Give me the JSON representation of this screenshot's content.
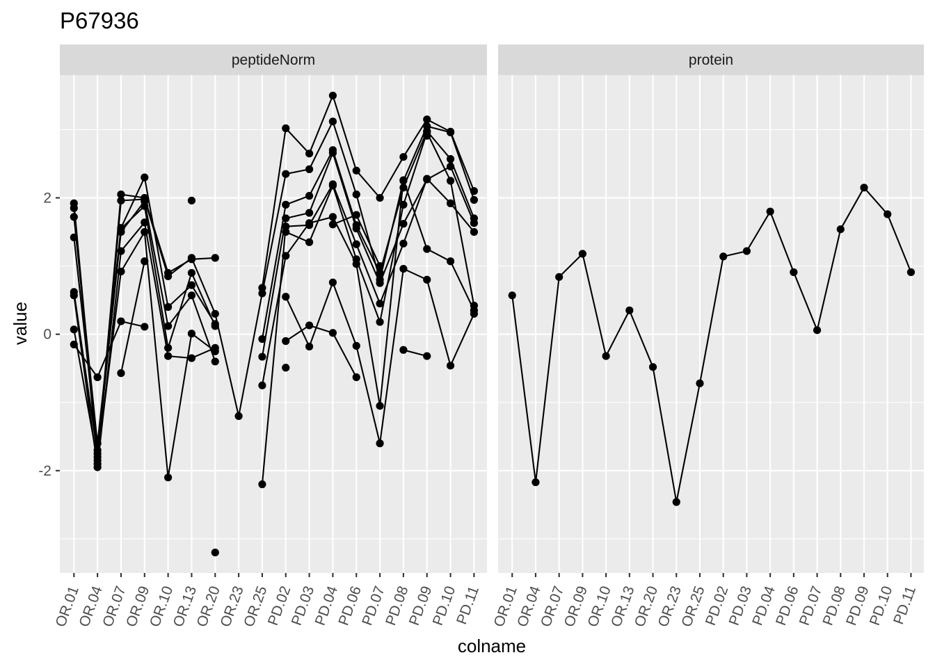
{
  "chart_data": {
    "type": "line",
    "title": "P67936",
    "xlabel": "colname",
    "ylabel": "value",
    "ylim": [
      -3.5,
      3.8
    ],
    "y_ticks": [
      -2,
      0,
      2
    ],
    "grid": true,
    "categories": [
      "OR.01",
      "OR.04",
      "OR.07",
      "OR.09",
      "OR.10",
      "OR.13",
      "OR.20",
      "OR.23",
      "OR.25",
      "PD.02",
      "PD.03",
      "PD.04",
      "PD.06",
      "PD.07",
      "PD.08",
      "PD.09",
      "PD.10",
      "PD.11"
    ],
    "panels": [
      {
        "label": "peptideNorm",
        "series": [
          {
            "values": [
              1.92,
              -1.8,
              2.05,
              2.0,
              0.9,
              1.1,
              1.12,
              null,
              0.68,
              3.02,
              2.65,
              3.5,
              2.4,
              2.0,
              2.6,
              3.15,
              2.97,
              2.1
            ]
          },
          {
            "values": [
              1.85,
              -1.9,
              1.96,
              1.98,
              0.85,
              1.12,
              0.3,
              -1.2,
              0.6,
              2.35,
              2.42,
              3.12,
              2.05,
              0.8,
              2.25,
              3.05,
              2.96,
              1.97
            ]
          },
          {
            "values": [
              1.72,
              -1.6,
              1.56,
              2.3,
              0.4,
              0.72,
              0.15,
              null,
              -0.07,
              1.9,
              2.03,
              2.7,
              1.6,
              0.9,
              2.15,
              2.98,
              2.57,
              1.7
            ]
          },
          {
            "values": [
              1.42,
              -1.7,
              1.5,
              1.95,
              0.12,
              0.57,
              -0.4,
              null,
              -0.33,
              1.7,
              1.78,
              2.66,
              1.55,
              0.75,
              1.62,
              2.27,
              2.46,
              1.63
            ]
          },
          {
            "values": [
              0.62,
              -1.75,
              1.55,
              1.88,
              -0.2,
              0.9,
              0.12,
              null,
              -2.2,
              1.58,
              1.6,
              2.2,
              1.32,
              0.45,
              1.33,
              2.28,
              1.92,
              1.5
            ]
          },
          {
            "values": [
              0.57,
              -1.95,
              1.22,
              1.64,
              -0.32,
              -0.35,
              -0.2,
              null,
              null,
              1.5,
              1.35,
              2.18,
              1.1,
              0.18,
              1.9,
              2.96,
              2.25,
              0.42
            ]
          },
          {
            "values": [
              0.07,
              -1.85,
              0.92,
              1.5,
              -2.1,
              0.01,
              -0.25,
              null,
              -0.75,
              1.15,
              1.63,
              1.72,
              1.03,
              -1.05,
              2.26,
              1.25,
              1.07,
              0.35
            ]
          },
          {
            "values": [
              -0.15,
              -0.63,
              0.19,
              0.11,
              null,
              null,
              null,
              null,
              null,
              0.55,
              -0.18,
              0.76,
              -0.17,
              -1.6,
              0.96,
              0.8,
              -0.46,
              0.3
            ]
          },
          {
            "values": [
              null,
              null,
              -0.57,
              1.07,
              null,
              1.96,
              null,
              null,
              null,
              -0.1,
              0.13,
              0.02,
              -0.63,
              null,
              -0.23,
              -0.32,
              null,
              null
            ]
          },
          {
            "values": [
              null,
              null,
              null,
              null,
              null,
              null,
              -3.2,
              null,
              null,
              -0.49,
              null,
              1.61,
              1.75,
              1.0,
              null,
              2.91,
              null,
              null
            ]
          }
        ]
      },
      {
        "label": "protein",
        "series": [
          {
            "values": [
              0.57,
              -2.17,
              0.84,
              1.18,
              -0.32,
              0.35,
              -0.48,
              -2.46,
              -0.72,
              1.14,
              1.22,
              1.8,
              0.91,
              0.06,
              1.54,
              2.15,
              1.76,
              0.91
            ]
          }
        ]
      }
    ]
  }
}
